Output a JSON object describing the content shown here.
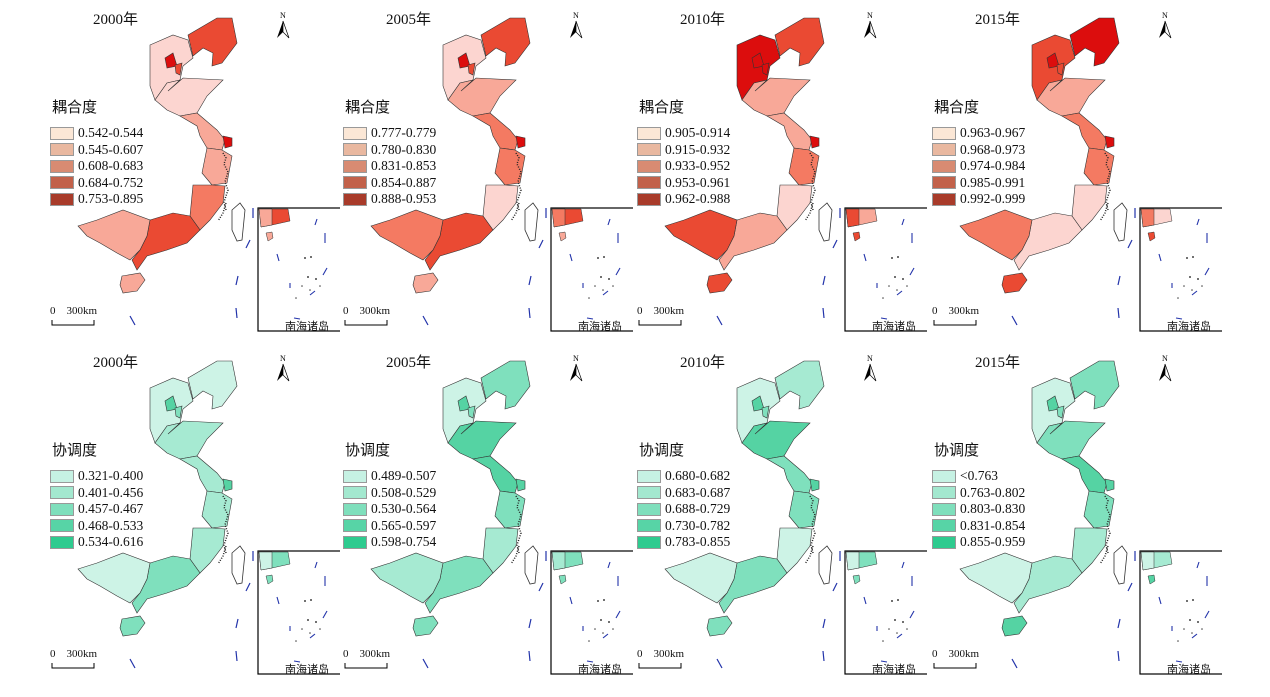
{
  "coupling": {
    "legend_title": "耦合度",
    "map_colors": [
      "#fcd5d0",
      "#f8a898",
      "#f47a62",
      "#ea4a33",
      "#dc0d0d"
    ],
    "legend_colors": [
      "#fbe7d6",
      "#e9b8a0",
      "#d88b72",
      "#c2614a",
      "#a83b2a"
    ],
    "panels": [
      {
        "year": "2000年",
        "classes": [
          "0.542-0.544",
          "0.545-0.607",
          "0.608-0.683",
          "0.684-0.752",
          "0.753-0.895"
        ],
        "fill": {
          "LN": 3,
          "HB": 0,
          "BJ": 4,
          "TJ": 3,
          "SD": 0,
          "JS": 1,
          "SH": 4,
          "ZJ": 1,
          "FJ": 2,
          "GD": 3,
          "GX": 1,
          "HN": 1
        }
      },
      {
        "year": "2005年",
        "classes": [
          "0.777-0.779",
          "0.780-0.830",
          "0.831-0.853",
          "0.854-0.887",
          "0.888-0.953"
        ],
        "fill": {
          "LN": 3,
          "HB": 0,
          "BJ": 4,
          "TJ": 3,
          "SD": 1,
          "JS": 2,
          "SH": 4,
          "ZJ": 2,
          "FJ": 0,
          "GD": 3,
          "GX": 2,
          "HN": 1
        }
      },
      {
        "year": "2010年",
        "classes": [
          "0.905-0.914",
          "0.915-0.932",
          "0.933-0.952",
          "0.953-0.961",
          "0.962-0.988"
        ],
        "fill": {
          "LN": 3,
          "HB": 4,
          "BJ": 4,
          "TJ": 4,
          "SD": 1,
          "JS": 1,
          "SH": 4,
          "ZJ": 2,
          "FJ": 0,
          "GD": 1,
          "GX": 3,
          "HN": 3
        }
      },
      {
        "year": "2015年",
        "classes": [
          "0.963-0.967",
          "0.968-0.973",
          "0.974-0.984",
          "0.985-0.991",
          "0.992-0.999"
        ],
        "fill": {
          "LN": 4,
          "HB": 3,
          "BJ": 4,
          "TJ": 3,
          "SD": 1,
          "JS": 2,
          "SH": 4,
          "ZJ": 2,
          "FJ": 0,
          "GD": 0,
          "GX": 2,
          "HN": 3
        }
      }
    ]
  },
  "coordination": {
    "legend_title": "协调度",
    "map_colors": [
      "#cdf3e6",
      "#a6ead2",
      "#7fe0bd",
      "#55d3a3",
      "#2ec78c"
    ],
    "legend_colors": [
      "#c6f1e3",
      "#a3e8cf",
      "#7fdfbc",
      "#57d4a6",
      "#2ecb8f"
    ],
    "panels": [
      {
        "year": "2000年",
        "classes": [
          "0.321-0.400",
          "0.401-0.456",
          "0.457-0.467",
          "0.468-0.533",
          "0.534-0.616"
        ],
        "fill": {
          "LN": 0,
          "HB": 0,
          "BJ": 3,
          "TJ": 2,
          "SD": 1,
          "JS": 1,
          "SH": 3,
          "ZJ": 1,
          "FJ": 1,
          "GD": 2,
          "GX": 0,
          "HN": 2
        }
      },
      {
        "year": "2005年",
        "classes": [
          "0.489-0.507",
          "0.508-0.529",
          "0.530-0.564",
          "0.565-0.597",
          "0.598-0.754"
        ],
        "fill": {
          "LN": 2,
          "HB": 0,
          "BJ": 3,
          "TJ": 2,
          "SD": 3,
          "JS": 3,
          "SH": 3,
          "ZJ": 2,
          "FJ": 1,
          "GD": 2,
          "GX": 1,
          "HN": 2
        }
      },
      {
        "year": "2010年",
        "classes": [
          "0.680-0.682",
          "0.683-0.687",
          "0.688-0.729",
          "0.730-0.782",
          "0.783-0.855"
        ],
        "fill": {
          "LN": 1,
          "HB": 0,
          "BJ": 3,
          "TJ": 2,
          "SD": 3,
          "JS": 2,
          "SH": 3,
          "ZJ": 2,
          "FJ": 0,
          "GD": 2,
          "GX": 0,
          "HN": 2
        }
      },
      {
        "year": "2015年",
        "classes": [
          "<0.763",
          "0.763-0.802",
          "0.803-0.830",
          "0.831-0.854",
          "0.855-0.959"
        ],
        "fill": {
          "LN": 2,
          "HB": 0,
          "BJ": 3,
          "TJ": 2,
          "SD": 2,
          "JS": 3,
          "SH": 3,
          "ZJ": 2,
          "FJ": 1,
          "GD": 1,
          "GX": 0,
          "HN": 3
        }
      }
    ]
  },
  "north_label": "N",
  "scale_zero": "0",
  "scale_label": "300km",
  "inset_label": "南海诸岛"
}
